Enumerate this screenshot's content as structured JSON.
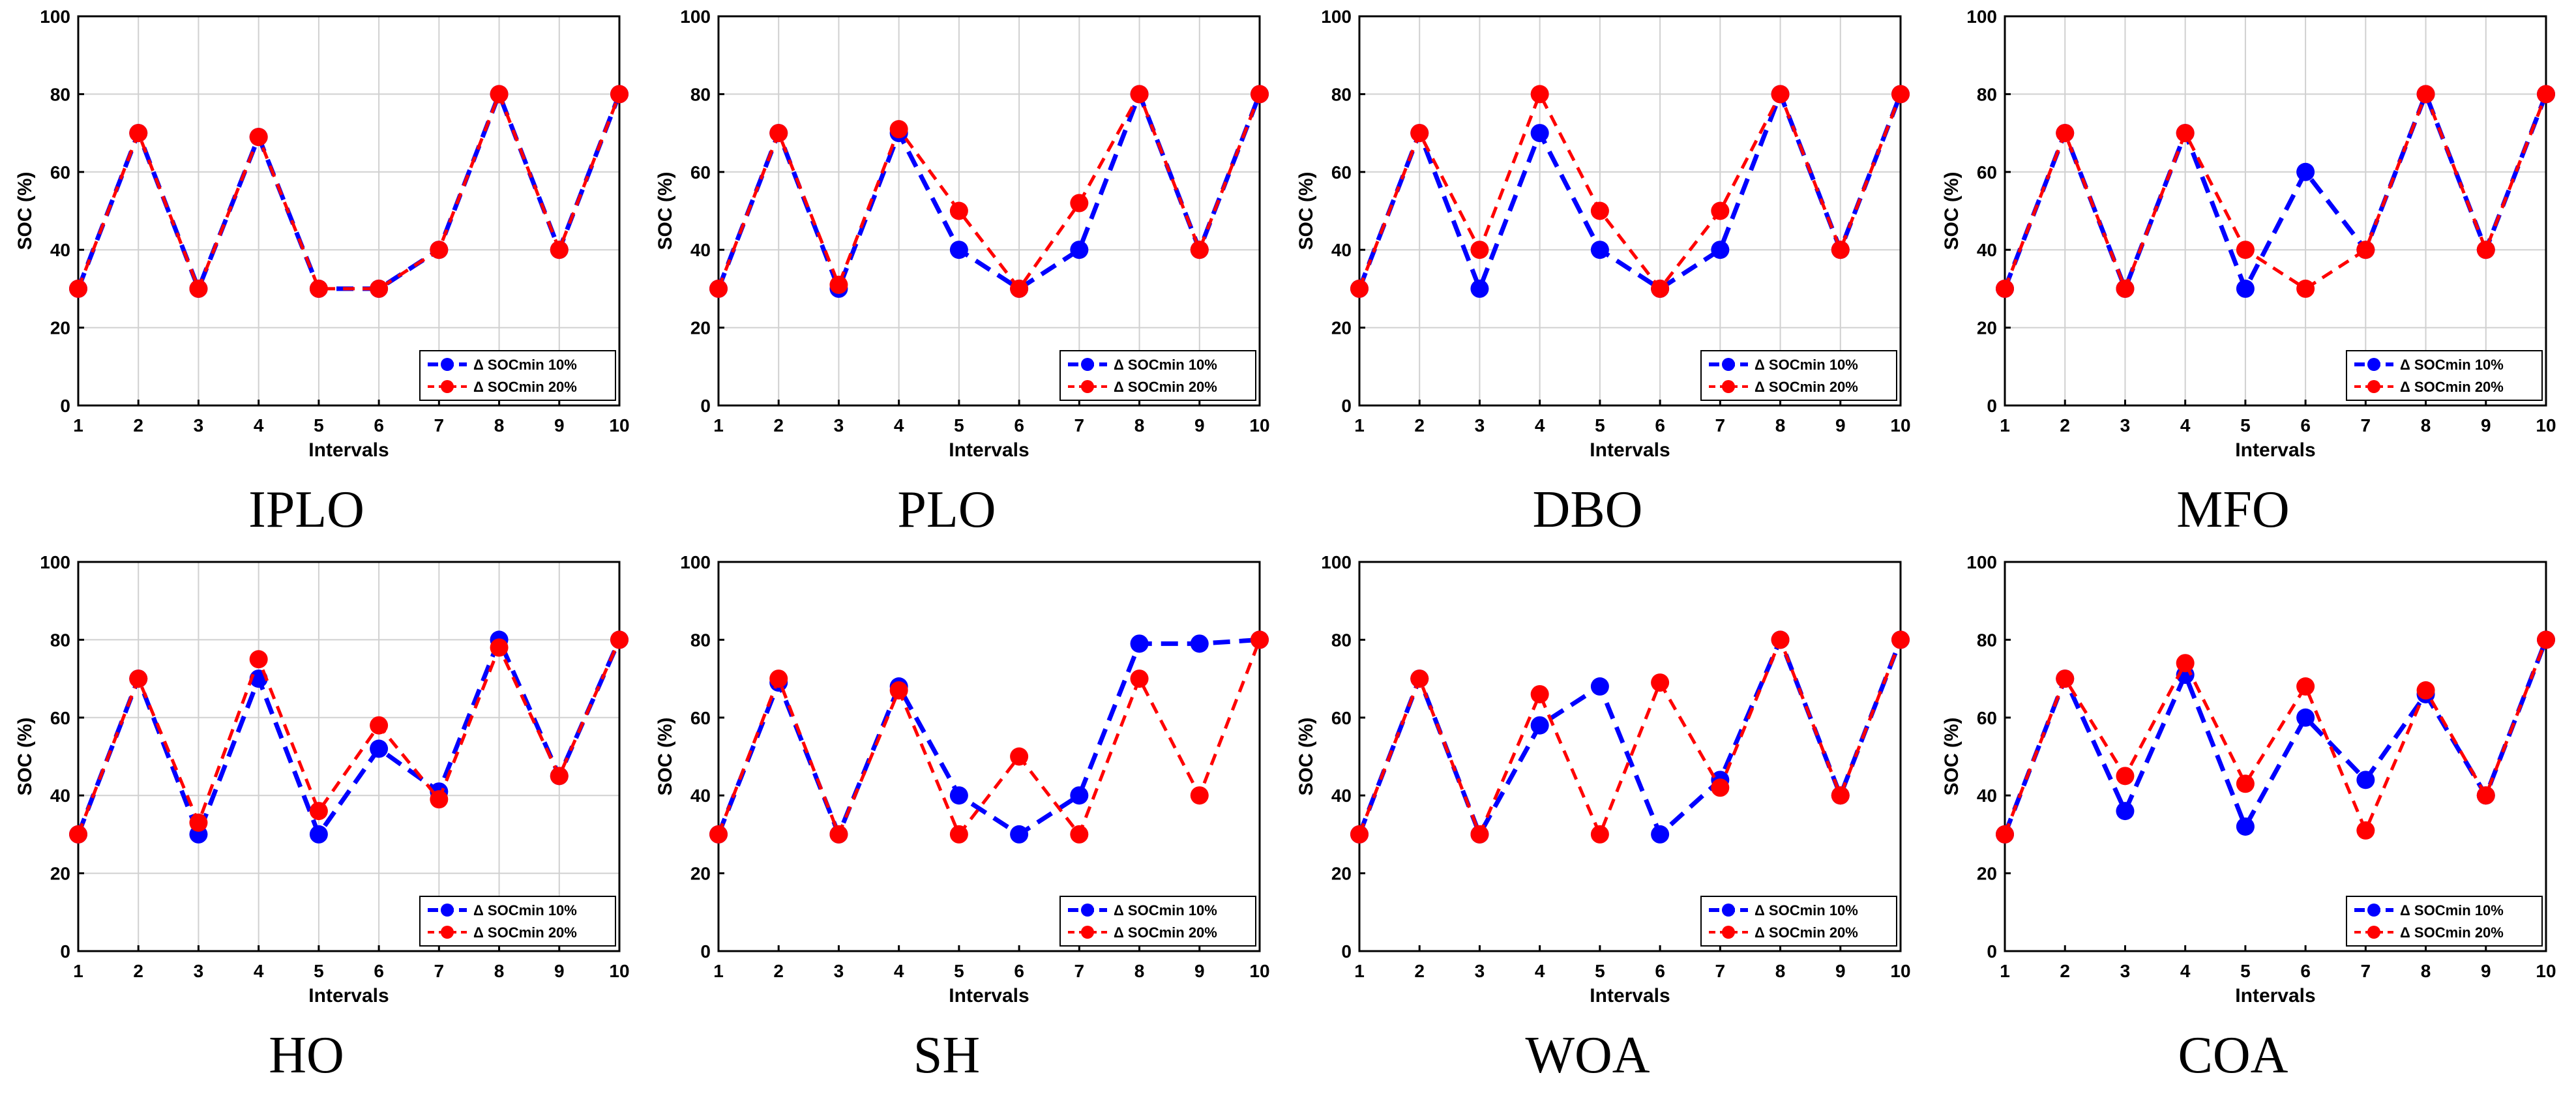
{
  "colors": {
    "series_10": "#0000ff",
    "series_20": "#ff0000",
    "grid": "#d0d0d0",
    "axis": "#000000"
  },
  "chart_data": [
    {
      "type": "line",
      "caption": "IPLO",
      "xlabel": "Intervals",
      "ylabel": "SOC (%)",
      "x": [
        1,
        2,
        3,
        4,
        5,
        6,
        7,
        8,
        9,
        10
      ],
      "xlim": [
        1,
        10
      ],
      "ylim": [
        0,
        100
      ],
      "yticks": [
        0,
        20,
        40,
        60,
        80,
        100
      ],
      "xticks": [
        1,
        2,
        3,
        4,
        5,
        6,
        7,
        8,
        9,
        10
      ],
      "grid": true,
      "legend": "bottom-right",
      "series": [
        {
          "name": "Δ SOCmin 10%",
          "color": "#0000ff",
          "values": [
            30,
            70,
            30,
            69,
            30,
            30,
            40,
            80,
            40,
            80
          ]
        },
        {
          "name": "Δ SOCmin 20%",
          "color": "#ff0000",
          "values": [
            30,
            70,
            30,
            69,
            30,
            30,
            40,
            80,
            40,
            80
          ]
        }
      ]
    },
    {
      "type": "line",
      "caption": "PLO",
      "xlabel": "Intervals",
      "ylabel": "SOC (%)",
      "x": [
        1,
        2,
        3,
        4,
        5,
        6,
        7,
        8,
        9,
        10
      ],
      "xlim": [
        1,
        10
      ],
      "ylim": [
        0,
        100
      ],
      "yticks": [
        0,
        20,
        40,
        60,
        80,
        100
      ],
      "xticks": [
        1,
        2,
        3,
        4,
        5,
        6,
        7,
        8,
        9,
        10
      ],
      "grid": true,
      "legend": "bottom-right",
      "series": [
        {
          "name": "Δ SOCmin 10%",
          "color": "#0000ff",
          "values": [
            30,
            70,
            30,
            70,
            40,
            30,
            40,
            80,
            40,
            80
          ]
        },
        {
          "name": "Δ SOCmin 20%",
          "color": "#ff0000",
          "values": [
            30,
            70,
            31,
            71,
            50,
            30,
            52,
            80,
            40,
            80
          ]
        }
      ]
    },
    {
      "type": "line",
      "caption": "DBO",
      "xlabel": "Intervals",
      "ylabel": "SOC (%)",
      "x": [
        1,
        2,
        3,
        4,
        5,
        6,
        7,
        8,
        9,
        10
      ],
      "xlim": [
        1,
        10
      ],
      "ylim": [
        0,
        100
      ],
      "yticks": [
        0,
        20,
        40,
        60,
        80,
        100
      ],
      "xticks": [
        1,
        2,
        3,
        4,
        5,
        6,
        7,
        8,
        9,
        10
      ],
      "grid": true,
      "legend": "bottom-right",
      "series": [
        {
          "name": "Δ SOCmin 10%",
          "color": "#0000ff",
          "values": [
            30,
            70,
            30,
            70,
            40,
            30,
            40,
            80,
            40,
            80
          ]
        },
        {
          "name": "Δ SOCmin 20%",
          "color": "#ff0000",
          "values": [
            30,
            70,
            40,
            80,
            50,
            30,
            50,
            80,
            40,
            80
          ]
        }
      ]
    },
    {
      "type": "line",
      "caption": "MFO",
      "xlabel": "Intervals",
      "ylabel": "SOC (%)",
      "x": [
        1,
        2,
        3,
        4,
        5,
        6,
        7,
        8,
        9,
        10
      ],
      "xlim": [
        1,
        10
      ],
      "ylim": [
        0,
        100
      ],
      "yticks": [
        0,
        20,
        40,
        60,
        80,
        100
      ],
      "xticks": [
        1,
        2,
        3,
        4,
        5,
        6,
        7,
        8,
        9,
        10
      ],
      "grid": true,
      "legend": "bottom-right",
      "series": [
        {
          "name": "Δ SOCmin 10%",
          "color": "#0000ff",
          "values": [
            30,
            70,
            30,
            70,
            30,
            60,
            40,
            80,
            40,
            80
          ]
        },
        {
          "name": "Δ SOCmin 20%",
          "color": "#ff0000",
          "values": [
            30,
            70,
            30,
            70,
            40,
            30,
            40,
            80,
            40,
            80
          ]
        }
      ]
    },
    {
      "type": "line",
      "caption": "HO",
      "xlabel": "Intervals",
      "ylabel": "SOC (%)",
      "x": [
        1,
        2,
        3,
        4,
        5,
        6,
        7,
        8,
        9,
        10
      ],
      "xlim": [
        1,
        10
      ],
      "ylim": [
        0,
        100
      ],
      "yticks": [
        0,
        20,
        40,
        60,
        80,
        100
      ],
      "xticks": [
        1,
        2,
        3,
        4,
        5,
        6,
        7,
        8,
        9,
        10
      ],
      "grid": true,
      "legend": "bottom-right",
      "series": [
        {
          "name": "Δ SOCmin 10%",
          "color": "#0000ff",
          "values": [
            30,
            70,
            30,
            70,
            30,
            52,
            41,
            80,
            45,
            80
          ]
        },
        {
          "name": "Δ SOCmin 20%",
          "color": "#ff0000",
          "values": [
            30,
            70,
            33,
            75,
            36,
            58,
            39,
            78,
            45,
            80
          ]
        }
      ]
    },
    {
      "type": "line",
      "caption": "SH",
      "xlabel": "Intervals",
      "ylabel": "SOC (%)",
      "x": [
        1,
        2,
        3,
        4,
        5,
        6,
        7,
        8,
        9,
        10
      ],
      "xlim": [
        1,
        10
      ],
      "ylim": [
        0,
        100
      ],
      "yticks": [
        0,
        20,
        40,
        60,
        80,
        100
      ],
      "xticks": [
        1,
        2,
        3,
        4,
        5,
        6,
        7,
        8,
        9,
        10
      ],
      "grid": false,
      "legend": "bottom-right",
      "series": [
        {
          "name": "Δ SOCmin 10%",
          "color": "#0000ff",
          "values": [
            30,
            69,
            30,
            68,
            40,
            30,
            40,
            79,
            79,
            80
          ]
        },
        {
          "name": "Δ SOCmin 20%",
          "color": "#ff0000",
          "values": [
            30,
            70,
            30,
            67,
            30,
            50,
            30,
            70,
            40,
            80
          ]
        }
      ]
    },
    {
      "type": "line",
      "caption": "WOA",
      "xlabel": "Intervals",
      "ylabel": "SOC (%)",
      "x": [
        1,
        2,
        3,
        4,
        5,
        6,
        7,
        8,
        9,
        10
      ],
      "xlim": [
        1,
        10
      ],
      "ylim": [
        0,
        100
      ],
      "yticks": [
        0,
        20,
        40,
        60,
        80,
        100
      ],
      "xticks": [
        1,
        2,
        3,
        4,
        5,
        6,
        7,
        8,
        9,
        10
      ],
      "grid": false,
      "legend": "bottom-right",
      "series": [
        {
          "name": "Δ SOCmin 10%",
          "color": "#0000ff",
          "values": [
            30,
            70,
            30,
            58,
            68,
            30,
            44,
            80,
            40,
            80
          ]
        },
        {
          "name": "Δ SOCmin 20%",
          "color": "#ff0000",
          "values": [
            30,
            70,
            30,
            66,
            30,
            69,
            42,
            80,
            40,
            80
          ]
        }
      ]
    },
    {
      "type": "line",
      "caption": "COA",
      "xlabel": "Intervals",
      "ylabel": "SOC (%)",
      "x": [
        1,
        2,
        3,
        4,
        5,
        6,
        7,
        8,
        9,
        10
      ],
      "xlim": [
        1,
        10
      ],
      "ylim": [
        0,
        100
      ],
      "yticks": [
        0,
        20,
        40,
        60,
        80,
        100
      ],
      "xticks": [
        1,
        2,
        3,
        4,
        5,
        6,
        7,
        8,
        9,
        10
      ],
      "grid": false,
      "legend": "bottom-right",
      "series": [
        {
          "name": "Δ SOCmin 10%",
          "color": "#0000ff",
          "values": [
            30,
            70,
            36,
            71,
            32,
            60,
            44,
            66,
            40,
            80
          ]
        },
        {
          "name": "Δ SOCmin 20%",
          "color": "#ff0000",
          "values": [
            30,
            70,
            45,
            74,
            43,
            68,
            31,
            67,
            40,
            80
          ]
        }
      ]
    }
  ]
}
